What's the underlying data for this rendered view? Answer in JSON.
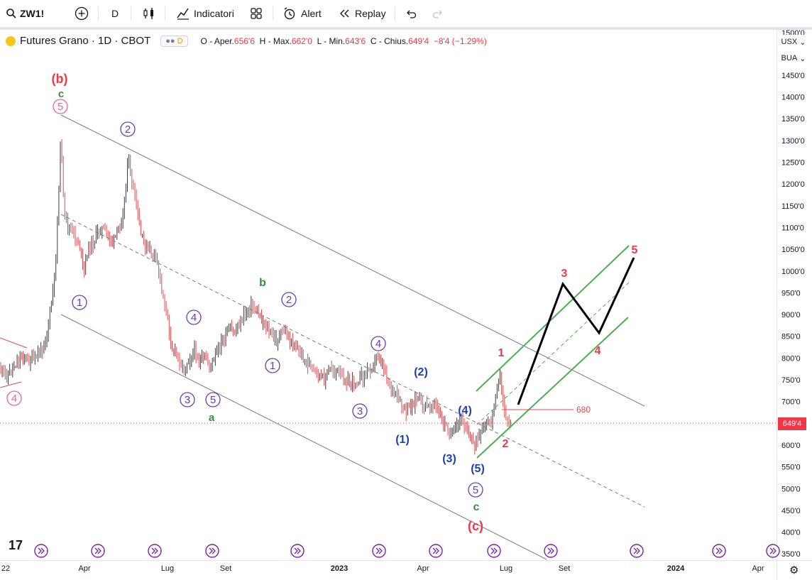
{
  "toolbar": {
    "symbol": "ZW1!",
    "interval": "D",
    "indicators_label": "Indicatori",
    "alert_label": "Alert",
    "replay_label": "Replay"
  },
  "legend": {
    "title": "Futures Grano · 1D · CBOT",
    "badge": "D",
    "open_label": "O - Aper.",
    "open": "656'6",
    "high_label": "H - Max.",
    "high": "662'0",
    "low_label": "L - Min.",
    "low": "643'6",
    "close_label": "C - Chius.",
    "close": "649'4",
    "change": "−8'4 (−1.29%)"
  },
  "price_axis": {
    "currency": "USX",
    "unit": "BUA",
    "current_price": "649'4",
    "top_partial_label": "1500'0",
    "labels": [
      "1450'0",
      "1400'0",
      "1350'0",
      "1300'0",
      "1250'0",
      "1200'0",
      "1150'0",
      "1100'0",
      "1050'0",
      "1000'0",
      "950'0",
      "900'0",
      "850'0",
      "800'0",
      "750'0",
      "700'0",
      "650'0",
      "600'0",
      "550'0",
      "500'0",
      "450'0",
      "400'0",
      "350'0"
    ]
  },
  "time_axis": {
    "labels": [
      "22",
      "Apr",
      "Lug",
      "Set",
      "2023",
      "Apr",
      "Lug",
      "Set",
      "2024",
      "Apr"
    ]
  },
  "annotations": {
    "level_680": "680",
    "wave_labels": [
      {
        "text": "(b)",
        "color": "#f23645"
      },
      {
        "text": "c",
        "color": "#388e3c"
      },
      {
        "text": "5",
        "color": "#f06292",
        "circled": true
      },
      {
        "text": "4",
        "color": "#f06292",
        "circled": true
      },
      {
        "text": "2",
        "color": "#673ab7",
        "circled": true
      },
      {
        "text": "1",
        "color": "#673ab7",
        "circled": true
      },
      {
        "text": "4",
        "color": "#673ab7",
        "circled": true
      },
      {
        "text": "3",
        "color": "#673ab7",
        "circled": true
      },
      {
        "text": "5",
        "color": "#673ab7",
        "circled": true
      },
      {
        "text": "a",
        "color": "#388e3c"
      },
      {
        "text": "b",
        "color": "#388e3c"
      },
      {
        "text": "2",
        "color": "#673ab7",
        "circled": true
      },
      {
        "text": "1",
        "color": "#673ab7",
        "circled": true
      },
      {
        "text": "3",
        "color": "#673ab7",
        "circled": true
      },
      {
        "text": "4",
        "color": "#673ab7",
        "circled": true
      },
      {
        "text": "(2)",
        "color": "#1e40af"
      },
      {
        "text": "(1)",
        "color": "#1e40af"
      },
      {
        "text": "(3)",
        "color": "#1e40af"
      },
      {
        "text": "(4)",
        "color": "#1e40af"
      },
      {
        "text": "(5)",
        "color": "#1e40af"
      },
      {
        "text": "5",
        "color": "#673ab7",
        "circled": true
      },
      {
        "text": "c",
        "color": "#388e3c"
      },
      {
        "text": "(c)",
        "color": "#f23645"
      },
      {
        "text": "1",
        "color": "#f23645"
      },
      {
        "text": "2",
        "color": "#f23645"
      },
      {
        "text": "3",
        "color": "#f23645"
      },
      {
        "text": "4",
        "color": "#f23645"
      },
      {
        "text": "5",
        "color": "#f23645"
      }
    ]
  },
  "colors": {
    "up_candle": "#3a3a3a",
    "down_candle": "#e5484d",
    "channel_green": "#4caf50",
    "projection_black": "#000000",
    "trendline_gray": "#787b86",
    "current_price_line": "#f23645"
  }
}
